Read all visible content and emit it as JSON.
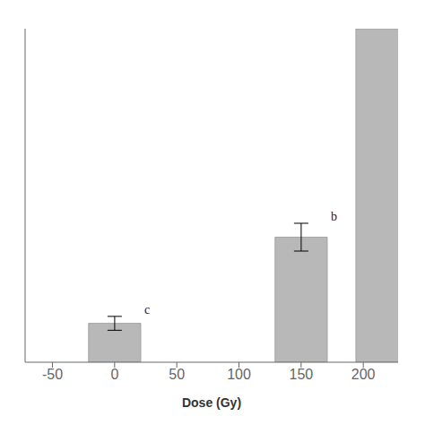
{
  "chart_data": {
    "type": "bar",
    "x": [
      0,
      150,
      215
    ],
    "values": [
      14,
      45,
      120
    ],
    "errors": [
      2.5,
      5,
      0
    ],
    "color": "#b8b8b8",
    "annotations": [
      {
        "text": "c",
        "x": 0
      },
      {
        "text": "b",
        "x": 150
      }
    ],
    "xlabel": "Dose (Gy)",
    "xlim": [
      -72,
      228
    ],
    "xticks": [
      -50,
      0,
      50,
      100,
      150,
      200
    ],
    "ylim": [
      0,
      120
    ],
    "tick_labels": "x",
    "grid": false
  }
}
